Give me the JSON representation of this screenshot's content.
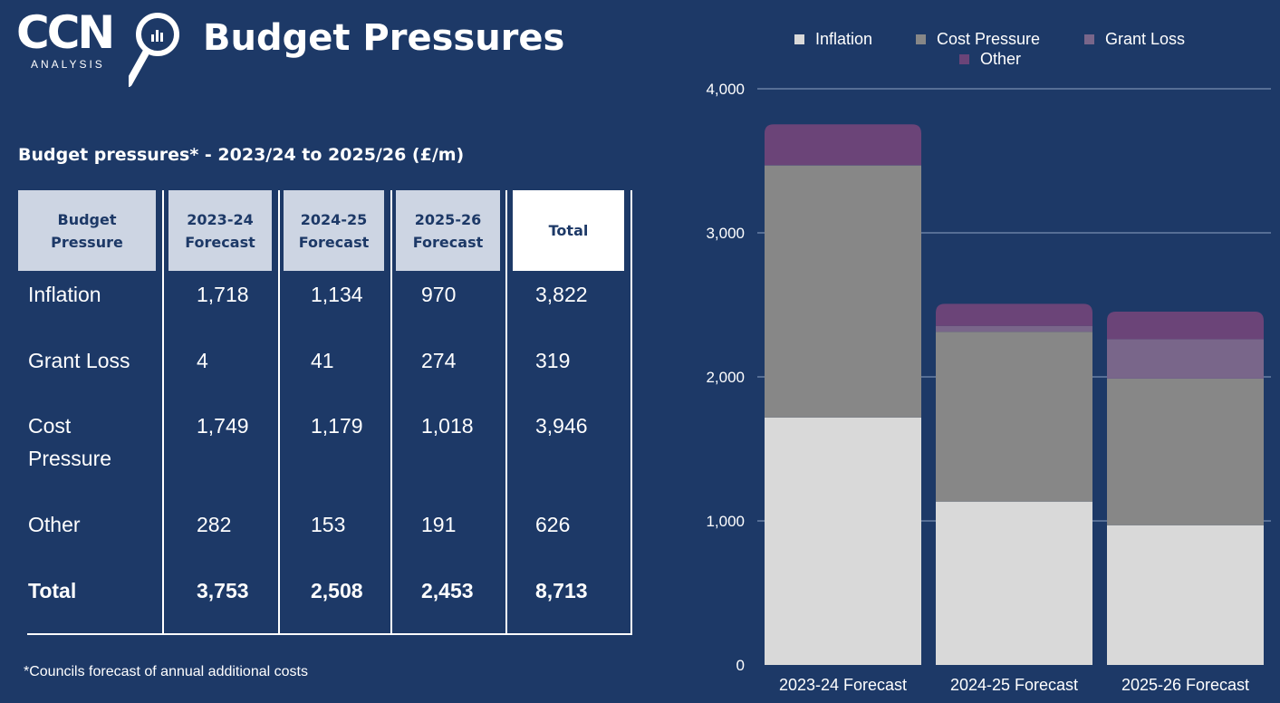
{
  "logo": {
    "main": "CCN",
    "sub": "ANALYSIS"
  },
  "title": "Budget Pressures",
  "table": {
    "title": "Budget pressures* - 2023/24 to 2025/26 (£/m)",
    "headers": [
      "Budget\nPressure",
      "2023-24\nForecast",
      "2024-25\nForecast",
      "2025-26\nForecast",
      "Total"
    ],
    "rows": [
      [
        "Inflation",
        "1,718",
        "1,134",
        "970",
        "3,822"
      ],
      [
        "Grant Loss",
        "4",
        "41",
        "274",
        "319"
      ],
      [
        "Cost\nPressure",
        "1,749",
        "1,179",
        "1,018",
        "3,946"
      ],
      [
        "Other",
        "282",
        "153",
        "191",
        "626"
      ],
      [
        "Total",
        "3,753",
        "2,508",
        "2,453",
        "8,713"
      ]
    ]
  },
  "footnote": "*Councils forecast of annual additional costs",
  "colors": {
    "background": "#1d3967",
    "inflation": "#d9d9d9",
    "cost_pressure": "#878787",
    "grant_loss": "#79668a",
    "other": "#6b4478",
    "header_bg": "#cdd5e3"
  },
  "chart_data": {
    "type": "bar",
    "stacked": true,
    "categories": [
      "2023-24 Forecast",
      "2024-25 Forecast",
      "2025-26 Forecast"
    ],
    "series": [
      {
        "name": "Inflation",
        "values": [
          1718,
          1134,
          970
        ],
        "color": "#d9d9d9"
      },
      {
        "name": "Cost Pressure",
        "values": [
          1749,
          1179,
          1018
        ],
        "color": "#878787"
      },
      {
        "name": "Grant Loss",
        "values": [
          4,
          41,
          274
        ],
        "color": "#79668a"
      },
      {
        "name": "Other",
        "values": [
          282,
          153,
          191
        ],
        "color": "#6b4478"
      }
    ],
    "ylim": [
      0,
      4000
    ],
    "yticks": [
      0,
      1000,
      2000,
      3000,
      4000
    ],
    "ytick_labels": [
      "0",
      "1,000",
      "2,000",
      "3,000",
      "4,000"
    ],
    "grid": true,
    "legend_position": "top"
  }
}
